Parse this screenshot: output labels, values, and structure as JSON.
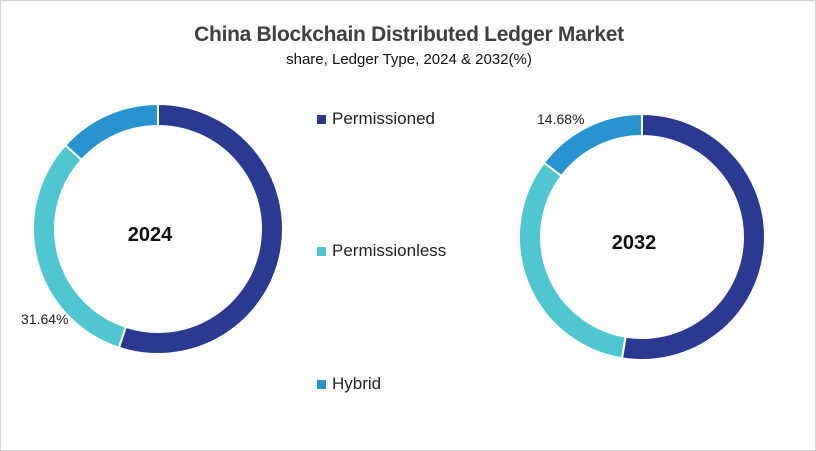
{
  "chart_data": {
    "type": "pie",
    "title": "China Blockchain Distributed Ledger Market",
    "subtitle": "share, Ledger Type, 2024 & 2032(%)",
    "categories": [
      "Permissioned",
      "Permissionless",
      "Hybrid"
    ],
    "colors": [
      "#2B3990",
      "#4FC6D0",
      "#2893CE"
    ],
    "legend_position": "center",
    "charts": [
      {
        "label": "2024",
        "values": [
          55.06,
          31.64,
          13.3
        ],
        "data_labels": {
          "Permissionless": "31.64%"
        }
      },
      {
        "label": "2032",
        "values": [
          52.6,
          32.72,
          14.68
        ],
        "data_labels": {
          "Hybrid": "14.68%"
        }
      }
    ]
  }
}
